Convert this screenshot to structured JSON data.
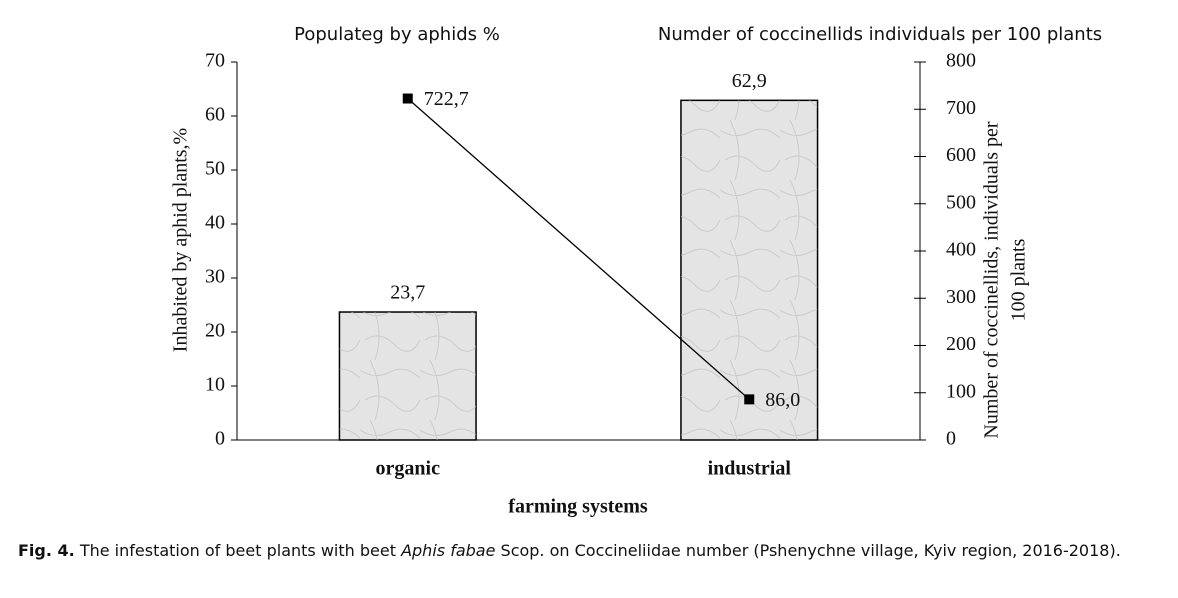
{
  "chart_data": {
    "type": "bar-line",
    "categories": [
      "organic",
      "industrial"
    ],
    "x_label": "farming systems",
    "y_label": "Inhabited by aphid plants,%",
    "y2_label": [
      "Number of coccinellids, individuals per",
      "100 plants"
    ],
    "ylim": [
      0,
      70
    ],
    "yticks": [
      0,
      10,
      20,
      30,
      40,
      50,
      60,
      70
    ],
    "y2lim": [
      0,
      800
    ],
    "y2ticks": [
      0,
      100,
      200,
      300,
      400,
      500,
      600,
      700,
      800
    ],
    "series": [
      {
        "name": "Populateg by aphids %",
        "type": "bar",
        "color": "#e4e4e4",
        "values": [
          23.7,
          62.9
        ],
        "value_labels": [
          "23,7",
          "62,9"
        ]
      },
      {
        "name": "Numder of coccinellids individuals per 100 plants",
        "type": "line",
        "axis": "y2",
        "color": "#000000",
        "values": [
          722.7,
          86.0
        ],
        "value_labels": [
          "722,7",
          "86,0"
        ]
      }
    ]
  },
  "caption": {
    "label": "Fig. 4.",
    "text_1": "The infestation of beet plants with beet",
    "species": "Aphis fabae",
    "text_2": "Scop.  on Coccineliidae number (Pshenychne village, Kyiv region, 2016-2018)."
  }
}
